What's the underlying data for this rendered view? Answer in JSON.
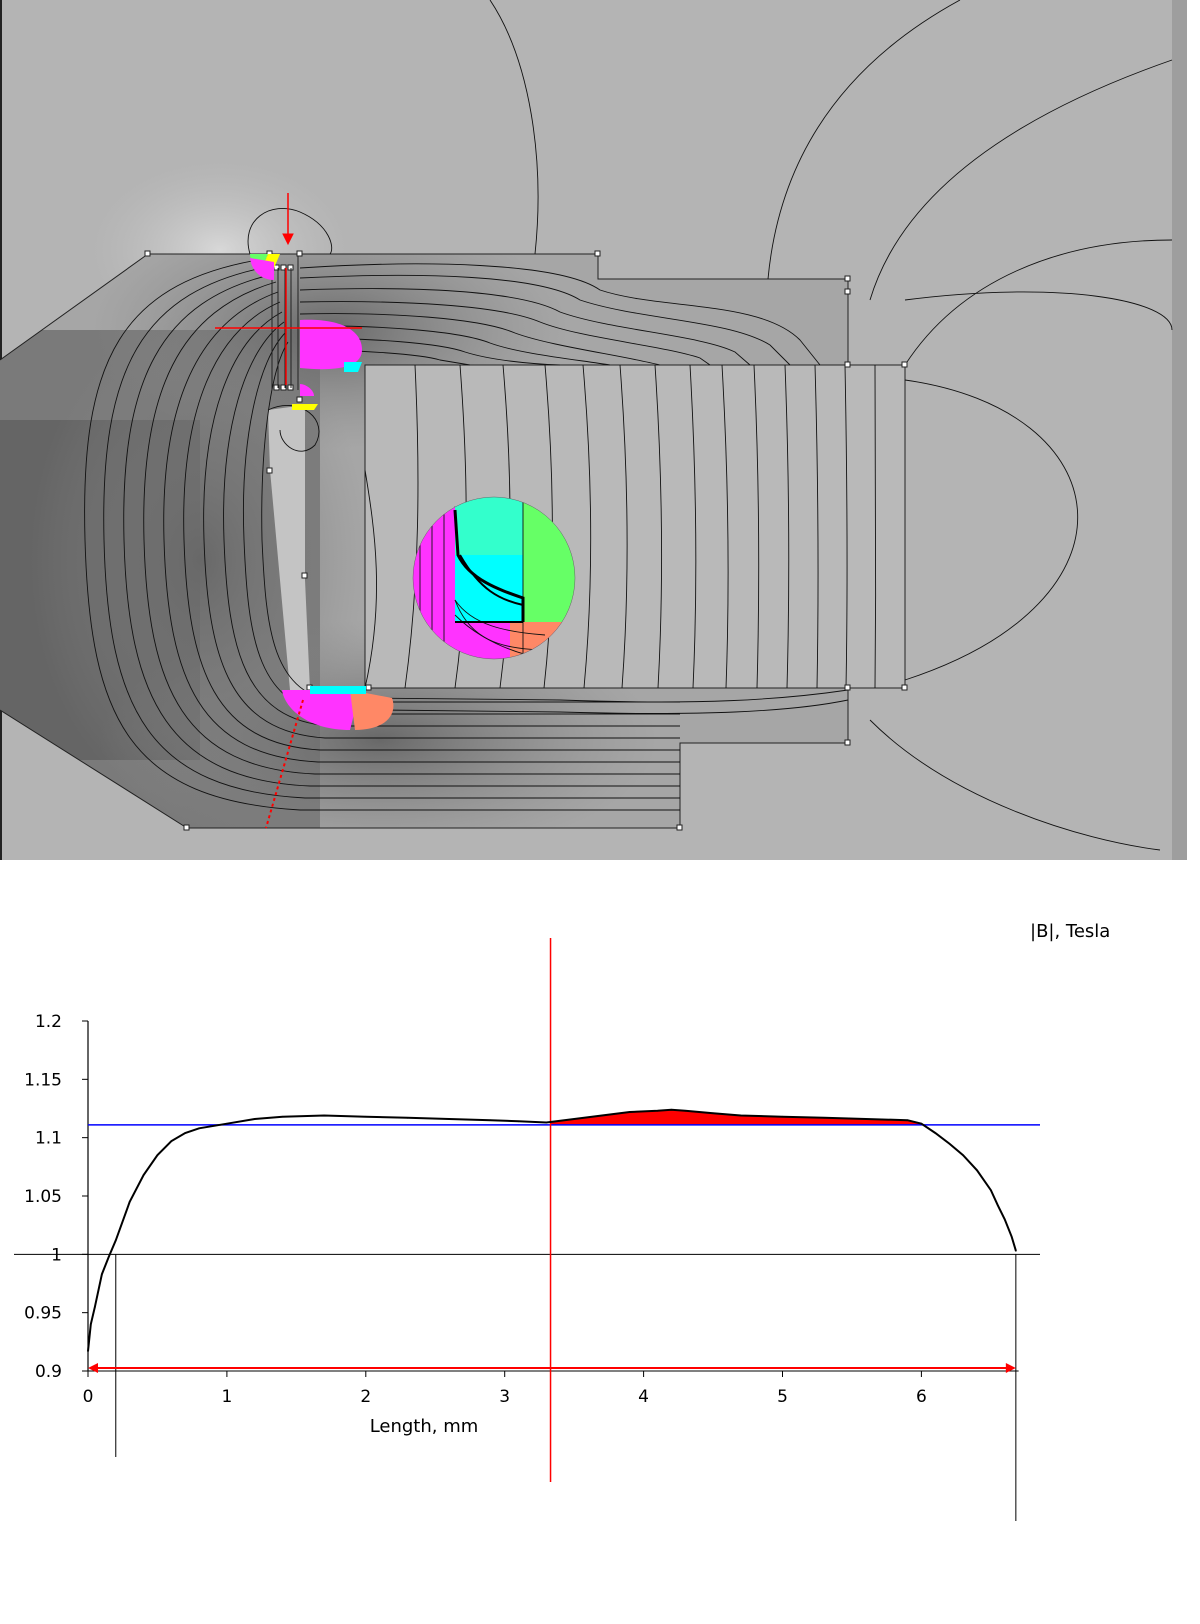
{
  "colors": {
    "field_background": "#b4b4b4",
    "curve": "#000000",
    "reference_line": "#0000ff",
    "excess_fill": "#ff0000",
    "marker": "#ff0000",
    "flux_magenta": "#ff33ff",
    "flux_cyan": "#00ffff",
    "flux_green": "#66ff66",
    "flux_aqua": "#33ffcc",
    "flux_salmon": "#ff8866",
    "flux_yellow": "#ffff00"
  },
  "chart_data": {
    "type": "line",
    "title": "",
    "xlabel": "Length, mm",
    "ylabel": "|B|, Tesla",
    "xlim": [
      0,
      6.7
    ],
    "ylim": [
      0.9,
      1.2
    ],
    "x_ticks": [
      "0",
      "1",
      "2",
      "3",
      "4",
      "5",
      "6"
    ],
    "y_ticks": [
      "0.9",
      "0.95",
      "1",
      "1.05",
      "1.1",
      "1.15",
      "1.2"
    ],
    "grid": false,
    "series": [
      {
        "name": "|B|, Tesla",
        "x": [
          0,
          0.02,
          0.05,
          0.1,
          0.15,
          0.2,
          0.3,
          0.4,
          0.5,
          0.6,
          0.7,
          0.8,
          1.0,
          1.2,
          1.4,
          1.7,
          2.0,
          2.3,
          2.6,
          2.9,
          3.1,
          3.3,
          3.5,
          3.7,
          3.9,
          4.1,
          4.2,
          4.3,
          4.5,
          4.7,
          5.0,
          5.3,
          5.6,
          5.9,
          6.0,
          6.1,
          6.2,
          6.3,
          6.4,
          6.5,
          6.55,
          6.6,
          6.65,
          6.68
        ],
        "values": [
          0.917,
          0.94,
          0.955,
          0.983,
          0.998,
          1.012,
          1.045,
          1.068,
          1.085,
          1.097,
          1.104,
          1.108,
          1.112,
          1.116,
          1.118,
          1.119,
          1.118,
          1.117,
          1.116,
          1.115,
          1.114,
          1.113,
          1.116,
          1.119,
          1.122,
          1.123,
          1.124,
          1.123,
          1.121,
          1.119,
          1.118,
          1.117,
          1.116,
          1.115,
          1.112,
          1.104,
          1.095,
          1.085,
          1.072,
          1.055,
          1.042,
          1.03,
          1.015,
          1.003
        ]
      }
    ],
    "reference_line": {
      "label": "",
      "y": 1.111
    },
    "base_line": {
      "y": 1.0
    },
    "marker_x": 3.33,
    "range_markers": [
      0.2,
      6.68
    ],
    "highlight_range": [
      3.33,
      6.0
    ]
  }
}
